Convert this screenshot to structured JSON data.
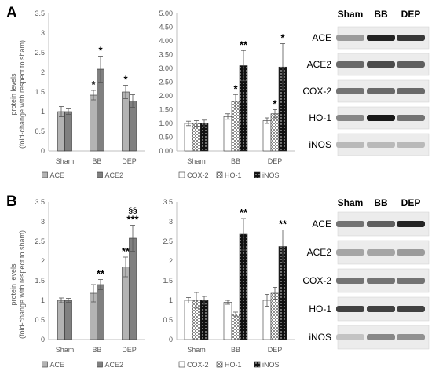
{
  "panels": [
    {
      "letter": "A",
      "ylabel_line1": "protein levels",
      "ylabel_line2": "(fold-change with respect to sham)",
      "blot_labels": [
        "Sham",
        "BB",
        "DEP"
      ],
      "blot_rows": [
        {
          "name": "ACE",
          "intensity": [
            0.35,
            0.95,
            0.85
          ]
        },
        {
          "name": "ACE2",
          "intensity": [
            0.6,
            0.75,
            0.65
          ]
        },
        {
          "name": "COX-2",
          "intensity": [
            0.55,
            0.6,
            0.6
          ]
        },
        {
          "name": "HO-1",
          "intensity": [
            0.45,
            1.0,
            0.55
          ]
        },
        {
          "name": "iNOS",
          "intensity": [
            0.2,
            0.2,
            0.2
          ]
        }
      ]
    },
    {
      "letter": "B",
      "ylabel_line1": "protein levels",
      "ylabel_line2": "(fold-change with respect to sham)",
      "blot_labels": [
        "Sham",
        "BB",
        "DEP"
      ],
      "blot_rows": [
        {
          "name": "ACE",
          "intensity": [
            0.55,
            0.65,
            0.95
          ]
        },
        {
          "name": "ACE2",
          "intensity": [
            0.3,
            0.3,
            0.35
          ]
        },
        {
          "name": "COX-2",
          "intensity": [
            0.55,
            0.55,
            0.55
          ]
        },
        {
          "name": "HO-1",
          "intensity": [
            0.8,
            0.8,
            0.8
          ]
        },
        {
          "name": "iNOS",
          "intensity": [
            0.15,
            0.45,
            0.4
          ]
        }
      ]
    }
  ],
  "colors": {
    "ACE": "#b3b3b3",
    "ACE2": "#808080",
    "COX-2": "#ffffff",
    "HO-1": "#c8c8c8",
    "iNOS": "#111111",
    "axis": "#bfbfbf",
    "text": "#595959"
  },
  "chart_data": [
    {
      "type": "bar",
      "panel": "A",
      "categories": [
        "Sham",
        "BB",
        "DEP"
      ],
      "ylim": [
        0,
        3.5
      ],
      "yticks": [
        "0",
        "0.5",
        "1",
        "1.5",
        "2",
        "2.5",
        "3",
        "3.5"
      ],
      "series": [
        {
          "name": "ACE",
          "pattern": "solid",
          "values": [
            1.0,
            1.42,
            1.5
          ],
          "errors": [
            0.13,
            0.12,
            0.17
          ],
          "sig": [
            "",
            "*",
            "*"
          ]
        },
        {
          "name": "ACE2",
          "pattern": "solid",
          "values": [
            1.0,
            2.08,
            1.27
          ],
          "errors": [
            0.07,
            0.33,
            0.16
          ],
          "sig": [
            "",
            "*",
            ""
          ]
        }
      ]
    },
    {
      "type": "bar",
      "panel": "A",
      "categories": [
        "Sham",
        "BB",
        "DEP"
      ],
      "ylim": [
        0,
        5
      ],
      "yticks": [
        "0.00",
        "0.50",
        "1.00",
        "1.50",
        "2.00",
        "2.50",
        "3.00",
        "3.50",
        "4.00",
        "4.50",
        "5.00"
      ],
      "series": [
        {
          "name": "COX-2",
          "pattern": "plain",
          "values": [
            1.0,
            1.25,
            1.1
          ],
          "errors": [
            0.08,
            0.1,
            0.1
          ],
          "sig": [
            "",
            "",
            ""
          ]
        },
        {
          "name": "HO-1",
          "pattern": "checker",
          "values": [
            1.0,
            1.8,
            1.35
          ],
          "errors": [
            0.1,
            0.25,
            0.15
          ],
          "sig": [
            "",
            "*",
            "*"
          ]
        },
        {
          "name": "iNOS",
          "pattern": "dots",
          "values": [
            1.0,
            3.1,
            3.05
          ],
          "errors": [
            0.12,
            0.55,
            0.85
          ],
          "sig": [
            "",
            "**",
            "*"
          ]
        }
      ]
    },
    {
      "type": "bar",
      "panel": "B",
      "categories": [
        "Sham",
        "BB",
        "DEP"
      ],
      "ylim": [
        0,
        3.5
      ],
      "yticks": [
        "0",
        "0.5",
        "1",
        "1.5",
        "2",
        "2.5",
        "3",
        "3.5"
      ],
      "series": [
        {
          "name": "ACE",
          "pattern": "solid",
          "values": [
            1.0,
            1.18,
            1.85
          ],
          "errors": [
            0.06,
            0.22,
            0.25
          ],
          "sig": [
            "",
            "",
            "**"
          ]
        },
        {
          "name": "ACE2",
          "pattern": "solid",
          "values": [
            1.0,
            1.4,
            2.58
          ],
          "errors": [
            0.05,
            0.13,
            0.33
          ],
          "sig": [
            "",
            "**",
            "***"
          ],
          "sig_extra": [
            "",
            "",
            "§§"
          ]
        }
      ]
    },
    {
      "type": "bar",
      "panel": "B",
      "categories": [
        "Sham",
        "BB",
        "DEP"
      ],
      "ylim": [
        0,
        3.5
      ],
      "yticks": [
        "0",
        "0.5",
        "1",
        "1.5",
        "2",
        "2.5",
        "3",
        "3.5"
      ],
      "series": [
        {
          "name": "COX-2",
          "pattern": "plain",
          "values": [
            1.0,
            0.95,
            1.0
          ],
          "errors": [
            0.07,
            0.05,
            0.15
          ],
          "sig": [
            "",
            "",
            ""
          ]
        },
        {
          "name": "HO-1",
          "pattern": "checker",
          "values": [
            1.0,
            0.65,
            1.18
          ],
          "errors": [
            0.2,
            0.05,
            0.15
          ],
          "sig": [
            "",
            "",
            ""
          ]
        },
        {
          "name": "iNOS",
          "pattern": "dots",
          "values": [
            1.0,
            2.68,
            2.37
          ],
          "errors": [
            0.1,
            0.4,
            0.42
          ],
          "sig": [
            "",
            "**",
            "**"
          ]
        }
      ]
    }
  ]
}
